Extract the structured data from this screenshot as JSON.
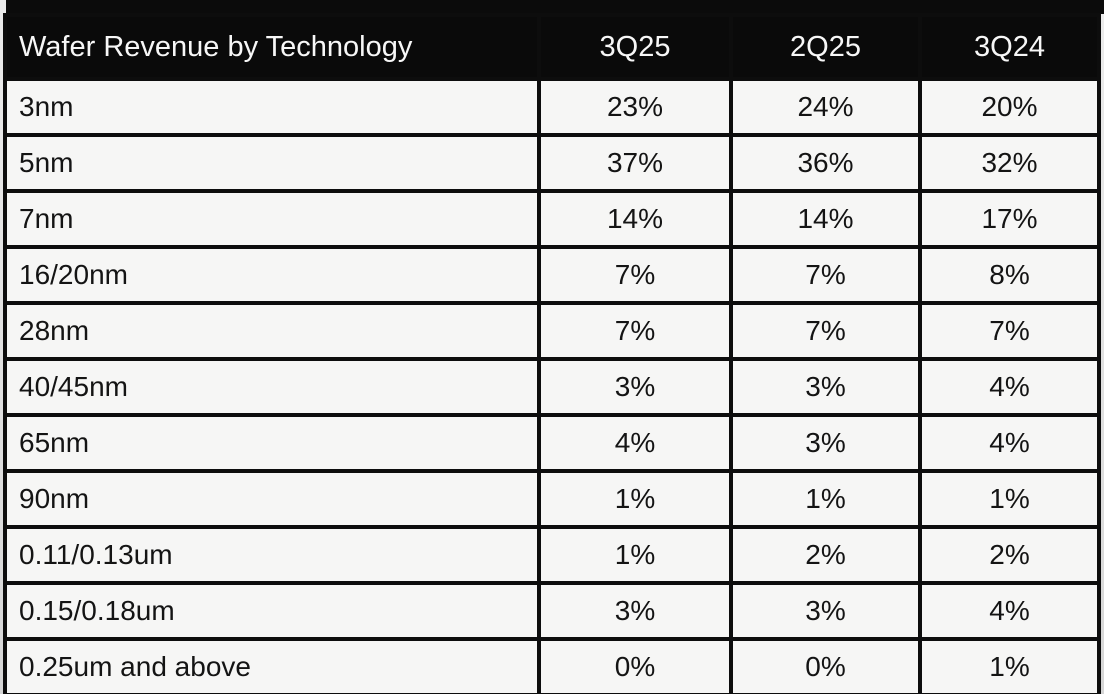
{
  "table": {
    "title": "Wafer Revenue by Technology",
    "columns": [
      "3Q25",
      "2Q25",
      "3Q24"
    ],
    "rows": [
      {
        "label": "3nm",
        "values": [
          "23%",
          "24%",
          "20%"
        ]
      },
      {
        "label": "5nm",
        "values": [
          "37%",
          "36%",
          "32%"
        ]
      },
      {
        "label": "7nm",
        "values": [
          "14%",
          "14%",
          "17%"
        ]
      },
      {
        "label": "16/20nm",
        "values": [
          "7%",
          "7%",
          "8%"
        ]
      },
      {
        "label": "28nm",
        "values": [
          "7%",
          "7%",
          "7%"
        ]
      },
      {
        "label": "40/45nm",
        "values": [
          "3%",
          "3%",
          "4%"
        ]
      },
      {
        "label": "65nm",
        "values": [
          "4%",
          "3%",
          "4%"
        ]
      },
      {
        "label": "90nm",
        "values": [
          "1%",
          "1%",
          "1%"
        ]
      },
      {
        "label": "0.11/0.13um",
        "values": [
          "1%",
          "2%",
          "2%"
        ]
      },
      {
        "label": "0.15/0.18um",
        "values": [
          "3%",
          "3%",
          "4%"
        ]
      },
      {
        "label": "0.25um and above",
        "values": [
          "0%",
          "0%",
          "1%"
        ]
      }
    ]
  },
  "chart_data": {
    "type": "table",
    "title": "Wafer Revenue by Technology",
    "categories": [
      "3nm",
      "5nm",
      "7nm",
      "16/20nm",
      "28nm",
      "40/45nm",
      "65nm",
      "90nm",
      "0.11/0.13um",
      "0.15/0.18um",
      "0.25um and above"
    ],
    "series": [
      {
        "name": "3Q25",
        "values": [
          23,
          37,
          14,
          7,
          7,
          3,
          4,
          1,
          1,
          3,
          0
        ]
      },
      {
        "name": "2Q25",
        "values": [
          24,
          36,
          14,
          7,
          7,
          3,
          3,
          1,
          2,
          3,
          0
        ]
      },
      {
        "name": "3Q24",
        "values": [
          20,
          32,
          17,
          8,
          7,
          4,
          4,
          1,
          2,
          4,
          1
        ]
      }
    ],
    "units": "%"
  },
  "colors": {
    "header_bg": "#0a0a0a",
    "header_text": "#f7f7f7",
    "cell_bg": "#f6f6f5",
    "cell_text": "#141414",
    "grid_border": "#0d0d0d",
    "page_bg": "#e0e0e0"
  }
}
